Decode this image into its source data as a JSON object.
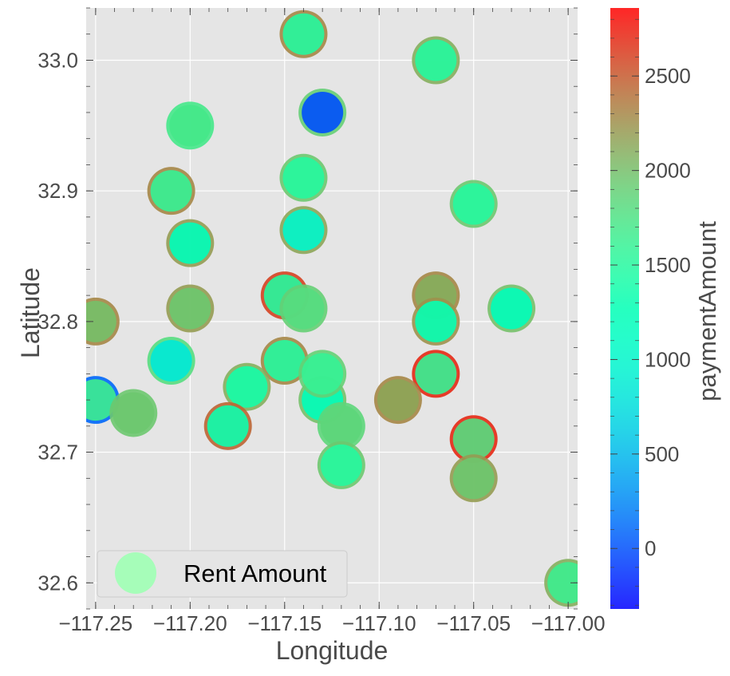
{
  "chart_data": {
    "type": "scatter",
    "xlabel": "Longitude",
    "ylabel": "Latitude",
    "xlim": [
      -117.255,
      -116.995
    ],
    "ylim": [
      32.58,
      33.04
    ],
    "xticks": [
      -117.25,
      -117.2,
      -117.15,
      -117.1,
      -117.05,
      -117.0
    ],
    "xtick_labels": [
      "−117.25",
      "−117.20",
      "−117.15",
      "−117.10",
      "−117.05",
      "−117.00"
    ],
    "yticks": [
      32.6,
      32.7,
      32.8,
      32.9,
      33.0
    ],
    "ytick_labels": [
      "32.6",
      "32.7",
      "32.8",
      "32.9",
      "33.0"
    ],
    "grid": true,
    "legend": {
      "label": "Rent Amount",
      "placement": "lower-left"
    },
    "colorbar": {
      "label": "paymentAmount",
      "colormap": "rainbow",
      "range": [
        -320,
        2860
      ],
      "ticks": [
        0,
        500,
        1000,
        1500,
        2000,
        2500
      ],
      "tick_labels": [
        "0",
        "500",
        "1000",
        "1500",
        "2000",
        "2500"
      ]
    },
    "points": [
      {
        "x": -117.14,
        "y": 33.02,
        "outer": 2300,
        "inner": 1500
      },
      {
        "x": -117.07,
        "y": 33.0,
        "outer": 2100,
        "inner": 1500
      },
      {
        "x": -117.13,
        "y": 32.96,
        "outer": 1900,
        "inner": 0
      },
      {
        "x": -117.2,
        "y": 32.95,
        "outer": 1700,
        "inner": 1700
      },
      {
        "x": -117.21,
        "y": 32.9,
        "outer": 2300,
        "inner": 1600
      },
      {
        "x": -117.14,
        "y": 32.91,
        "outer": 1950,
        "inner": 1500
      },
      {
        "x": -117.05,
        "y": 32.89,
        "outer": 1950,
        "inner": 1500
      },
      {
        "x": -117.2,
        "y": 32.86,
        "outer": 2200,
        "inner": 1200
      },
      {
        "x": -117.14,
        "y": 32.87,
        "outer": 2150,
        "inner": 1000
      },
      {
        "x": -117.15,
        "y": 32.82,
        "outer": 2600,
        "inner": 1500
      },
      {
        "x": -117.14,
        "y": 32.81,
        "outer": 1900,
        "inner": 1800
      },
      {
        "x": -117.07,
        "y": 32.82,
        "outer": 2300,
        "inner": 2100
      },
      {
        "x": -117.07,
        "y": 32.8,
        "outer": 2250,
        "inner": 1300
      },
      {
        "x": -117.03,
        "y": 32.81,
        "outer": 2000,
        "inner": 1200
      },
      {
        "x": -117.25,
        "y": 32.8,
        "outer": 2300,
        "inner": 2000
      },
      {
        "x": -117.2,
        "y": 32.81,
        "outer": 2200,
        "inner": 1950
      },
      {
        "x": -117.21,
        "y": 32.77,
        "outer": 1800,
        "inner": 850
      },
      {
        "x": -117.15,
        "y": 32.77,
        "outer": 2300,
        "inner": 1500
      },
      {
        "x": -117.13,
        "y": 32.74,
        "outer": 2000,
        "inner": 1200
      },
      {
        "x": -117.13,
        "y": 32.76,
        "outer": 1900,
        "inner": 1600
      },
      {
        "x": -117.17,
        "y": 32.75,
        "outer": 2100,
        "inner": 1400
      },
      {
        "x": -117.07,
        "y": 32.76,
        "outer": 2700,
        "inner": 1600
      },
      {
        "x": -117.09,
        "y": 32.74,
        "outer": 2300,
        "inner": 2150
      },
      {
        "x": -117.25,
        "y": 32.74,
        "outer": 100,
        "inner": 1650
      },
      {
        "x": -117.23,
        "y": 32.73,
        "outer": 1950,
        "inner": 1950
      },
      {
        "x": -117.18,
        "y": 32.72,
        "outer": 2450,
        "inner": 1350
      },
      {
        "x": -117.12,
        "y": 32.72,
        "outer": 1850,
        "inner": 1850
      },
      {
        "x": -117.12,
        "y": 32.69,
        "outer": 1950,
        "inner": 1500
      },
      {
        "x": -117.05,
        "y": 32.71,
        "outer": 2700,
        "inner": 1800
      },
      {
        "x": -117.05,
        "y": 32.68,
        "outer": 2200,
        "inner": 1950
      },
      {
        "x": -117.0,
        "y": 32.6,
        "outer": 2100,
        "inner": 1650
      }
    ]
  }
}
